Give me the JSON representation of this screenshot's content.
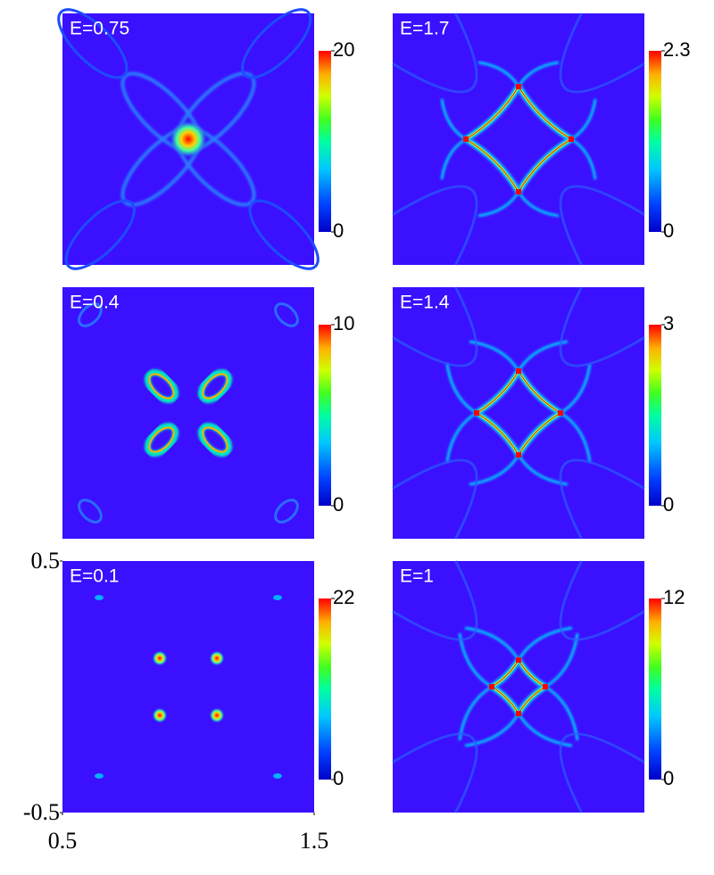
{
  "chart_data": [
    {
      "type": "heatmap",
      "title": "E=0.75",
      "clim": [
        0,
        20
      ],
      "cticks": [
        0,
        20
      ]
    },
    {
      "type": "heatmap",
      "title": "E=1.7",
      "clim": [
        0,
        2.3
      ],
      "cticks": [
        0,
        2.3
      ]
    },
    {
      "type": "heatmap",
      "title": "E=0.4",
      "clim": [
        0,
        10
      ],
      "cticks": [
        0,
        10
      ]
    },
    {
      "type": "heatmap",
      "title": "E=1.4",
      "clim": [
        0,
        3
      ],
      "cticks": [
        0,
        3
      ]
    },
    {
      "type": "heatmap",
      "title": "E=0.1",
      "clim": [
        0,
        22
      ],
      "cticks": [
        0,
        22
      ],
      "xlim": [
        0.5,
        1.5
      ],
      "xticks": [
        0.5,
        1.5
      ],
      "ylim": [
        -0.5,
        0.5
      ],
      "yticks": [
        -0.5,
        0.5
      ]
    },
    {
      "type": "heatmap",
      "title": "E=1",
      "clim": [
        0,
        12
      ],
      "cticks": [
        0,
        12
      ]
    }
  ]
}
